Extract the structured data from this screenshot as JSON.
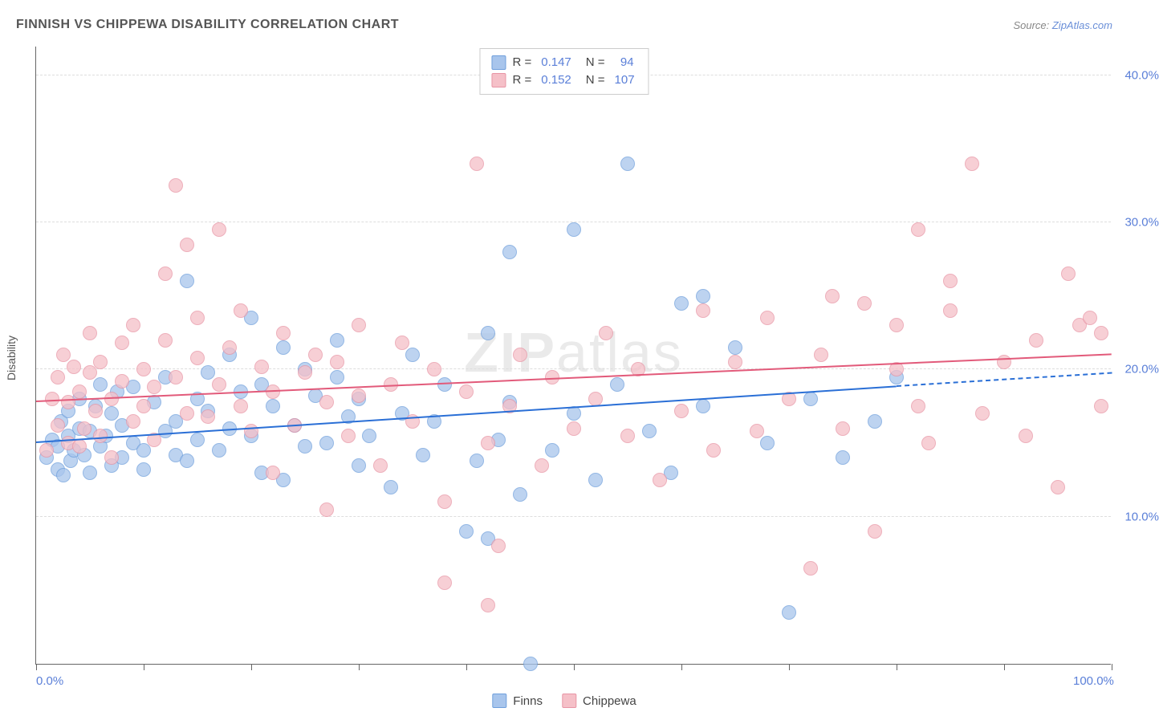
{
  "chart": {
    "title": "FINNISH VS CHIPPEWA DISABILITY CORRELATION CHART",
    "source_prefix": "Source: ",
    "source_link": "ZipAtlas.com",
    "yaxis_label": "Disability",
    "watermark": "ZIPatlas",
    "background_color": "#ffffff",
    "grid_color": "#dddddd",
    "xlim": [
      0,
      100
    ],
    "ylim": [
      0,
      42
    ],
    "yticks": [
      10,
      20,
      30,
      40
    ],
    "ytick_labels": [
      "10.0%",
      "20.0%",
      "30.0%",
      "40.0%"
    ],
    "xticks": [
      0,
      10,
      20,
      30,
      40,
      50,
      60,
      70,
      80,
      90,
      100
    ],
    "xtick_labels_shown": {
      "0": "0.0%",
      "100": "100.0%"
    },
    "label_color": "#5a7fd8",
    "axis_text_color": "#555555",
    "marker_radius": 9,
    "marker_border_width": 1,
    "marker_opacity": 0.75,
    "series": [
      {
        "name": "Finns",
        "fill": "#a8c5ec",
        "stroke": "#6f9fdc",
        "trend_color": "#2a6fd6",
        "trend_start": [
          0,
          15.0
        ],
        "trend_end": [
          80,
          18.8
        ],
        "trend_dash_end": [
          100,
          19.7
        ],
        "R": "0.147",
        "N": "94",
        "points": [
          [
            1,
            14.0
          ],
          [
            1.5,
            15.2
          ],
          [
            2,
            13.2
          ],
          [
            2,
            14.8
          ],
          [
            2.3,
            16.5
          ],
          [
            2.5,
            12.8
          ],
          [
            3,
            15.5
          ],
          [
            3,
            17.2
          ],
          [
            3.2,
            13.8
          ],
          [
            3.5,
            14.5
          ],
          [
            4,
            16.0
          ],
          [
            4,
            18.0
          ],
          [
            4.5,
            14.2
          ],
          [
            5,
            15.8
          ],
          [
            5,
            13.0
          ],
          [
            5.5,
            17.5
          ],
          [
            6,
            14.8
          ],
          [
            6,
            19.0
          ],
          [
            6.5,
            15.5
          ],
          [
            7,
            13.5
          ],
          [
            7,
            17.0
          ],
          [
            7.5,
            18.5
          ],
          [
            8,
            14.0
          ],
          [
            8,
            16.2
          ],
          [
            9,
            15.0
          ],
          [
            9,
            18.8
          ],
          [
            10,
            14.5
          ],
          [
            10,
            13.2
          ],
          [
            11,
            17.8
          ],
          [
            12,
            15.8
          ],
          [
            12,
            19.5
          ],
          [
            13,
            14.2
          ],
          [
            13,
            16.5
          ],
          [
            14,
            26.0
          ],
          [
            14,
            13.8
          ],
          [
            15,
            18.0
          ],
          [
            15,
            15.2
          ],
          [
            16,
            17.2
          ],
          [
            16,
            19.8
          ],
          [
            17,
            14.5
          ],
          [
            18,
            21.0
          ],
          [
            18,
            16.0
          ],
          [
            19,
            18.5
          ],
          [
            20,
            23.5
          ],
          [
            20,
            15.5
          ],
          [
            21,
            19.0
          ],
          [
            21,
            13.0
          ],
          [
            22,
            17.5
          ],
          [
            23,
            12.5
          ],
          [
            23,
            21.5
          ],
          [
            24,
            16.2
          ],
          [
            25,
            14.8
          ],
          [
            25,
            20.0
          ],
          [
            26,
            18.2
          ],
          [
            27,
            15.0
          ],
          [
            28,
            19.5
          ],
          [
            28,
            22.0
          ],
          [
            29,
            16.8
          ],
          [
            30,
            13.5
          ],
          [
            30,
            18.0
          ],
          [
            31,
            15.5
          ],
          [
            33,
            12.0
          ],
          [
            34,
            17.0
          ],
          [
            35,
            21.0
          ],
          [
            36,
            14.2
          ],
          [
            37,
            16.5
          ],
          [
            38,
            19.0
          ],
          [
            40,
            9.0
          ],
          [
            41,
            13.8
          ],
          [
            42,
            22.5
          ],
          [
            42,
            8.5
          ],
          [
            43,
            15.2
          ],
          [
            44,
            17.8
          ],
          [
            44,
            28.0
          ],
          [
            45,
            11.5
          ],
          [
            46,
            0.0
          ],
          [
            48,
            14.5
          ],
          [
            50,
            17.0
          ],
          [
            50,
            29.5
          ],
          [
            52,
            12.5
          ],
          [
            54,
            19.0
          ],
          [
            55,
            34.0
          ],
          [
            57,
            15.8
          ],
          [
            59,
            13.0
          ],
          [
            60,
            24.5
          ],
          [
            62,
            17.5
          ],
          [
            62,
            25.0
          ],
          [
            65,
            21.5
          ],
          [
            68,
            15.0
          ],
          [
            70,
            3.5
          ],
          [
            72,
            18.0
          ],
          [
            75,
            14.0
          ],
          [
            78,
            16.5
          ],
          [
            80,
            19.5
          ]
        ]
      },
      {
        "name": "Chippewa",
        "fill": "#f5c0c8",
        "stroke": "#e895a5",
        "trend_color": "#e25a7a",
        "trend_start": [
          0,
          17.8
        ],
        "trend_end": [
          100,
          21.0
        ],
        "R": "0.152",
        "N": "107",
        "points": [
          [
            1,
            14.5
          ],
          [
            1.5,
            18.0
          ],
          [
            2,
            16.2
          ],
          [
            2,
            19.5
          ],
          [
            2.5,
            21.0
          ],
          [
            3,
            15.0
          ],
          [
            3,
            17.8
          ],
          [
            3.5,
            20.2
          ],
          [
            4,
            14.8
          ],
          [
            4,
            18.5
          ],
          [
            4.5,
            16.0
          ],
          [
            5,
            19.8
          ],
          [
            5,
            22.5
          ],
          [
            5.5,
            17.2
          ],
          [
            6,
            15.5
          ],
          [
            6,
            20.5
          ],
          [
            7,
            18.0
          ],
          [
            7,
            14.0
          ],
          [
            8,
            19.2
          ],
          [
            8,
            21.8
          ],
          [
            9,
            16.5
          ],
          [
            9,
            23.0
          ],
          [
            10,
            17.5
          ],
          [
            10,
            20.0
          ],
          [
            11,
            18.8
          ],
          [
            11,
            15.2
          ],
          [
            12,
            22.0
          ],
          [
            12,
            26.5
          ],
          [
            13,
            32.5
          ],
          [
            13,
            19.5
          ],
          [
            14,
            17.0
          ],
          [
            14,
            28.5
          ],
          [
            15,
            20.8
          ],
          [
            15,
            23.5
          ],
          [
            16,
            16.8
          ],
          [
            17,
            29.5
          ],
          [
            17,
            19.0
          ],
          [
            18,
            21.5
          ],
          [
            19,
            17.5
          ],
          [
            19,
            24.0
          ],
          [
            20,
            15.8
          ],
          [
            21,
            20.2
          ],
          [
            22,
            18.5
          ],
          [
            22,
            13.0
          ],
          [
            23,
            22.5
          ],
          [
            24,
            16.2
          ],
          [
            25,
            19.8
          ],
          [
            26,
            21.0
          ],
          [
            27,
            10.5
          ],
          [
            27,
            17.8
          ],
          [
            28,
            20.5
          ],
          [
            29,
            15.5
          ],
          [
            30,
            23.0
          ],
          [
            30,
            18.2
          ],
          [
            32,
            13.5
          ],
          [
            33,
            19.0
          ],
          [
            34,
            21.8
          ],
          [
            35,
            16.5
          ],
          [
            37,
            20.0
          ],
          [
            38,
            11.0
          ],
          [
            38,
            5.5
          ],
          [
            40,
            18.5
          ],
          [
            41,
            34.0
          ],
          [
            42,
            15.0
          ],
          [
            42,
            4.0
          ],
          [
            43,
            8.0
          ],
          [
            44,
            17.5
          ],
          [
            45,
            21.0
          ],
          [
            47,
            13.5
          ],
          [
            48,
            19.5
          ],
          [
            50,
            16.0
          ],
          [
            52,
            18.0
          ],
          [
            53,
            22.5
          ],
          [
            55,
            15.5
          ],
          [
            56,
            20.0
          ],
          [
            58,
            12.5
          ],
          [
            60,
            17.2
          ],
          [
            62,
            24.0
          ],
          [
            63,
            14.5
          ],
          [
            65,
            20.5
          ],
          [
            67,
            15.8
          ],
          [
            68,
            23.5
          ],
          [
            70,
            18.0
          ],
          [
            72,
            6.5
          ],
          [
            73,
            21.0
          ],
          [
            74,
            25.0
          ],
          [
            75,
            16.0
          ],
          [
            77,
            24.5
          ],
          [
            78,
            9.0
          ],
          [
            80,
            20.0
          ],
          [
            80,
            23.0
          ],
          [
            82,
            17.5
          ],
          [
            82,
            29.5
          ],
          [
            83,
            15.0
          ],
          [
            85,
            26.0
          ],
          [
            85,
            24.0
          ],
          [
            87,
            34.0
          ],
          [
            88,
            17.0
          ],
          [
            90,
            20.5
          ],
          [
            92,
            15.5
          ],
          [
            93,
            22.0
          ],
          [
            95,
            12.0
          ],
          [
            96,
            26.5
          ],
          [
            97,
            23.0
          ],
          [
            98,
            23.5
          ],
          [
            99,
            17.5
          ],
          [
            99,
            22.5
          ]
        ]
      }
    ],
    "legend_stats_format": {
      "r_label": "R =",
      "n_label": "N ="
    },
    "bottom_legend": [
      "Finns",
      "Chippewa"
    ]
  }
}
